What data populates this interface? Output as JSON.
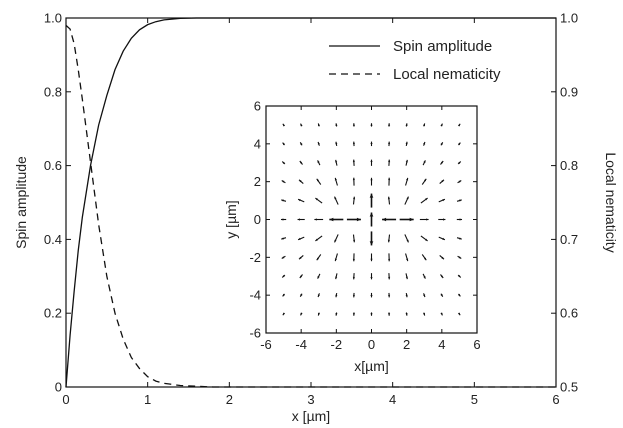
{
  "chart_data": {
    "type": "line",
    "xlabel": "x [µm]",
    "ylabel_left": "Spin amplitude",
    "ylabel_right": "Local nematicity",
    "xlim": [
      0,
      6
    ],
    "ylim_left": [
      0,
      1
    ],
    "ylim_right": [
      0.5,
      1
    ],
    "x_ticks": [
      "0",
      "1",
      "2",
      "3",
      "4",
      "5",
      "6"
    ],
    "y_left_ticks": [
      "0",
      "0.2",
      "0.4",
      "0.6",
      "0.8",
      "1.0"
    ],
    "y_right_ticks": [
      "0.5",
      "0.6",
      "0.7",
      "0.8",
      "0.9",
      "1.0"
    ],
    "legend_position": "top-right",
    "series": [
      {
        "name": "Spin amplitude",
        "axis": "left",
        "style": "solid",
        "x": [
          0,
          0.05,
          0.1,
          0.15,
          0.2,
          0.3,
          0.4,
          0.5,
          0.6,
          0.7,
          0.8,
          0.9,
          1.0,
          1.1,
          1.2,
          1.4,
          1.6,
          1.8,
          2.0,
          2.5,
          3,
          4,
          5,
          6
        ],
        "y": [
          0,
          0.14,
          0.26,
          0.37,
          0.46,
          0.6,
          0.71,
          0.79,
          0.86,
          0.91,
          0.945,
          0.968,
          0.982,
          0.99,
          0.995,
          0.999,
          1.0,
          1.0,
          1.0,
          1.0,
          1.0,
          1.0,
          1.0,
          1.0
        ]
      },
      {
        "name": "Local nematicity",
        "axis": "right",
        "style": "dashed",
        "x": [
          0,
          0.05,
          0.1,
          0.15,
          0.2,
          0.3,
          0.4,
          0.5,
          0.6,
          0.7,
          0.8,
          0.9,
          1.0,
          1.1,
          1.2,
          1.4,
          1.6,
          1.8,
          2.0,
          2.5,
          3,
          4,
          5,
          6
        ],
        "y": [
          0.99,
          0.985,
          0.965,
          0.93,
          0.89,
          0.805,
          0.72,
          0.65,
          0.6,
          0.565,
          0.54,
          0.525,
          0.514,
          0.508,
          0.505,
          0.502,
          0.501,
          0.5,
          0.5,
          0.5,
          0.5,
          0.5,
          0.5,
          0.5
        ]
      }
    ],
    "inset": {
      "type": "vector-field",
      "xlabel": "x[µm]",
      "ylabel": "y [µm]",
      "xlim": [
        -6,
        6
      ],
      "ylim": [
        -6,
        6
      ],
      "x_ticks": [
        "-6",
        "-4",
        "-2",
        "0",
        "2",
        "4",
        "6"
      ],
      "y_ticks": [
        "-6",
        "-4",
        "-2",
        "0",
        "2",
        "4",
        "6"
      ],
      "grid_values": [
        -5,
        -4,
        -3,
        -2,
        -1,
        0,
        1,
        2,
        3,
        4,
        5
      ]
    }
  }
}
